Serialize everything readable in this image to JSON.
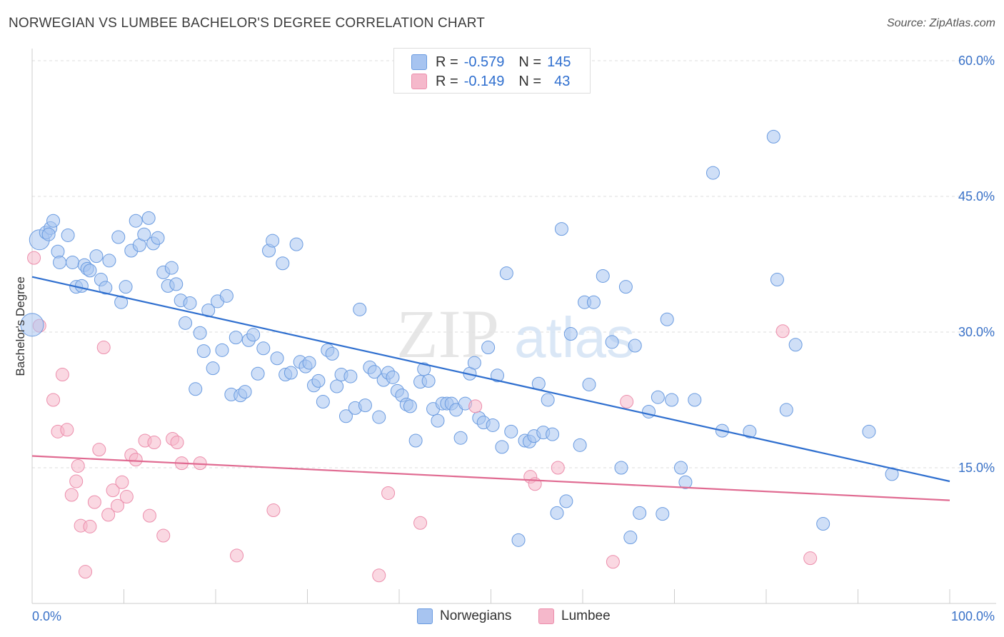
{
  "header": {
    "title": "NORWEGIAN VS LUMBEE BACHELOR'S DEGREE CORRELATION CHART",
    "source": "Source: ZipAtlas.com"
  },
  "legend": {
    "rows": [
      {
        "r_label": "R =",
        "r_value": "-0.579",
        "n_label": "N =",
        "n_value": "145",
        "color": "#a7c4f0"
      },
      {
        "r_label": "R =",
        "r_value": "-0.149",
        "n_label": "N =",
        "n_value": "43",
        "color": "#f5b8cb"
      }
    ]
  },
  "bottom_legend": [
    "Norwegians",
    "Lumbee"
  ],
  "chart_data": {
    "type": "scatter",
    "title": "NORWEGIAN VS LUMBEE BACHELOR'S DEGREE CORRELATION CHART",
    "ylabel": "Bachelor's Degree",
    "xlim": [
      0,
      100
    ],
    "ylim": [
      0,
      60
    ],
    "y_ticks": [
      {
        "v": 15,
        "label": "15.0%"
      },
      {
        "v": 30,
        "label": "30.0%"
      },
      {
        "v": 45,
        "label": "45.0%"
      },
      {
        "v": 60,
        "label": "60.0%"
      }
    ],
    "x_ticks": [
      {
        "v": 0,
        "label": "0.0%"
      },
      {
        "v": 100,
        "label": "100.0%"
      }
    ],
    "grid": true,
    "watermark": "ZIPatlas",
    "series": [
      {
        "name": "Norwegians",
        "color": "#a7c4f0",
        "stroke": "#6a9be0",
        "trend": {
          "x": [
            0,
            100
          ],
          "y": [
            36.1,
            13.5
          ],
          "color": "#2f6fcf"
        },
        "points": [
          [
            0.8,
            40.2
          ],
          [
            1.5,
            41.0
          ],
          [
            2.0,
            41.5
          ],
          [
            2.3,
            42.3
          ],
          [
            1.8,
            40.8
          ],
          [
            2.8,
            38.9
          ],
          [
            3.0,
            37.7
          ],
          [
            3.9,
            40.7
          ],
          [
            4.4,
            37.7
          ],
          [
            4.8,
            35.0
          ],
          [
            5.4,
            35.1
          ],
          [
            5.7,
            37.4
          ],
          [
            6.0,
            37.0
          ],
          [
            6.3,
            36.8
          ],
          [
            7.0,
            38.4
          ],
          [
            7.5,
            35.8
          ],
          [
            8.0,
            34.9
          ],
          [
            8.4,
            37.9
          ],
          [
            9.4,
            40.5
          ],
          [
            9.7,
            33.3
          ],
          [
            10.2,
            35.0
          ],
          [
            10.8,
            39.0
          ],
          [
            11.3,
            42.3
          ],
          [
            11.7,
            39.6
          ],
          [
            12.2,
            40.8
          ],
          [
            12.7,
            42.6
          ],
          [
            13.2,
            39.8
          ],
          [
            13.7,
            40.4
          ],
          [
            14.3,
            36.6
          ],
          [
            14.8,
            35.1
          ],
          [
            15.2,
            37.1
          ],
          [
            15.7,
            35.3
          ],
          [
            16.2,
            33.5
          ],
          [
            16.7,
            31.0
          ],
          [
            17.2,
            33.2
          ],
          [
            17.8,
            23.7
          ],
          [
            18.3,
            29.9
          ],
          [
            18.7,
            27.9
          ],
          [
            19.2,
            32.4
          ],
          [
            19.7,
            26.0
          ],
          [
            20.2,
            33.4
          ],
          [
            20.7,
            28.0
          ],
          [
            21.2,
            34.0
          ],
          [
            21.7,
            23.1
          ],
          [
            22.2,
            29.4
          ],
          [
            22.7,
            23.0
          ],
          [
            23.2,
            23.4
          ],
          [
            23.6,
            29.1
          ],
          [
            24.1,
            29.7
          ],
          [
            24.6,
            25.4
          ],
          [
            25.2,
            28.2
          ],
          [
            25.8,
            39.0
          ],
          [
            26.2,
            40.1
          ],
          [
            26.7,
            27.1
          ],
          [
            27.3,
            37.6
          ],
          [
            27.6,
            25.3
          ],
          [
            28.2,
            25.5
          ],
          [
            28.8,
            39.7
          ],
          [
            29.2,
            26.7
          ],
          [
            29.8,
            26.2
          ],
          [
            30.2,
            26.6
          ],
          [
            30.7,
            24.1
          ],
          [
            31.2,
            24.6
          ],
          [
            31.7,
            22.3
          ],
          [
            32.2,
            28.0
          ],
          [
            32.7,
            27.6
          ],
          [
            33.2,
            24.0
          ],
          [
            33.7,
            25.3
          ],
          [
            34.2,
            20.7
          ],
          [
            34.7,
            25.1
          ],
          [
            35.2,
            21.6
          ],
          [
            35.7,
            32.5
          ],
          [
            36.3,
            21.9
          ],
          [
            36.8,
            26.1
          ],
          [
            37.3,
            25.6
          ],
          [
            37.8,
            20.6
          ],
          [
            38.3,
            24.7
          ],
          [
            38.8,
            25.5
          ],
          [
            39.3,
            25.0
          ],
          [
            39.8,
            23.5
          ],
          [
            40.3,
            23.0
          ],
          [
            40.8,
            22.0
          ],
          [
            41.2,
            21.8
          ],
          [
            41.8,
            18.0
          ],
          [
            42.3,
            24.5
          ],
          [
            42.7,
            25.9
          ],
          [
            43.2,
            24.6
          ],
          [
            43.7,
            21.5
          ],
          [
            44.2,
            20.2
          ],
          [
            44.7,
            22.1
          ],
          [
            45.2,
            22.1
          ],
          [
            45.7,
            22.1
          ],
          [
            46.2,
            21.4
          ],
          [
            46.7,
            18.3
          ],
          [
            47.2,
            22.1
          ],
          [
            47.7,
            25.4
          ],
          [
            48.2,
            26.6
          ],
          [
            48.7,
            20.5
          ],
          [
            49.2,
            20.0
          ],
          [
            49.7,
            28.3
          ],
          [
            50.2,
            19.7
          ],
          [
            50.7,
            25.2
          ],
          [
            51.2,
            17.3
          ],
          [
            51.7,
            36.5
          ],
          [
            52.2,
            19.0
          ],
          [
            53.0,
            7.0
          ],
          [
            53.7,
            18.0
          ],
          [
            54.2,
            17.9
          ],
          [
            54.7,
            18.5
          ],
          [
            55.2,
            24.3
          ],
          [
            55.7,
            18.9
          ],
          [
            56.2,
            22.5
          ],
          [
            56.7,
            18.7
          ],
          [
            57.2,
            10.0
          ],
          [
            57.7,
            41.4
          ],
          [
            58.2,
            11.3
          ],
          [
            58.7,
            29.8
          ],
          [
            59.7,
            17.5
          ],
          [
            60.2,
            33.3
          ],
          [
            60.7,
            24.2
          ],
          [
            61.2,
            33.3
          ],
          [
            62.2,
            36.2
          ],
          [
            63.2,
            28.9
          ],
          [
            64.2,
            15.0
          ],
          [
            64.7,
            35.0
          ],
          [
            65.2,
            7.3
          ],
          [
            65.7,
            28.5
          ],
          [
            66.2,
            10.0
          ],
          [
            67.2,
            21.2
          ],
          [
            68.2,
            22.8
          ],
          [
            68.7,
            9.9
          ],
          [
            69.2,
            31.4
          ],
          [
            69.7,
            22.5
          ],
          [
            70.7,
            15.0
          ],
          [
            71.2,
            13.4
          ],
          [
            72.2,
            22.5
          ],
          [
            74.2,
            47.6
          ],
          [
            75.2,
            19.1
          ],
          [
            78.2,
            19.0
          ],
          [
            80.8,
            51.6
          ],
          [
            81.2,
            35.8
          ],
          [
            82.2,
            21.4
          ],
          [
            83.2,
            28.6
          ],
          [
            86.2,
            8.8
          ],
          [
            91.2,
            19.0
          ],
          [
            93.7,
            14.3
          ]
        ]
      },
      {
        "name": "Lumbee",
        "color": "#f5b8cb",
        "stroke": "#ec8eac",
        "trend": {
          "x": [
            0,
            100
          ],
          "y": [
            16.3,
            11.4
          ],
          "color": "#e06a91"
        },
        "points": [
          [
            0.2,
            38.2
          ],
          [
            0.8,
            30.7
          ],
          [
            2.3,
            22.5
          ],
          [
            2.8,
            19.0
          ],
          [
            3.3,
            25.3
          ],
          [
            3.8,
            19.2
          ],
          [
            4.3,
            12.0
          ],
          [
            4.8,
            13.5
          ],
          [
            5.0,
            15.2
          ],
          [
            5.3,
            8.6
          ],
          [
            5.8,
            3.5
          ],
          [
            6.3,
            8.5
          ],
          [
            6.8,
            11.2
          ],
          [
            7.3,
            17.0
          ],
          [
            7.8,
            28.3
          ],
          [
            8.3,
            9.8
          ],
          [
            8.8,
            12.5
          ],
          [
            9.3,
            10.8
          ],
          [
            9.8,
            13.4
          ],
          [
            10.3,
            11.8
          ],
          [
            10.8,
            16.4
          ],
          [
            11.3,
            15.9
          ],
          [
            12.3,
            18.0
          ],
          [
            12.8,
            9.7
          ],
          [
            13.3,
            17.8
          ],
          [
            14.3,
            7.5
          ],
          [
            15.3,
            18.2
          ],
          [
            15.8,
            17.8
          ],
          [
            16.3,
            15.5
          ],
          [
            18.3,
            15.5
          ],
          [
            22.3,
            5.3
          ],
          [
            26.3,
            10.3
          ],
          [
            37.8,
            3.1
          ],
          [
            38.8,
            12.2
          ],
          [
            42.3,
            8.9
          ],
          [
            48.3,
            21.8
          ],
          [
            54.3,
            14.0
          ],
          [
            54.8,
            13.2
          ],
          [
            57.3,
            15.0
          ],
          [
            63.3,
            4.6
          ],
          [
            64.8,
            22.3
          ],
          [
            81.8,
            30.1
          ],
          [
            84.8,
            5.0
          ]
        ]
      }
    ]
  }
}
